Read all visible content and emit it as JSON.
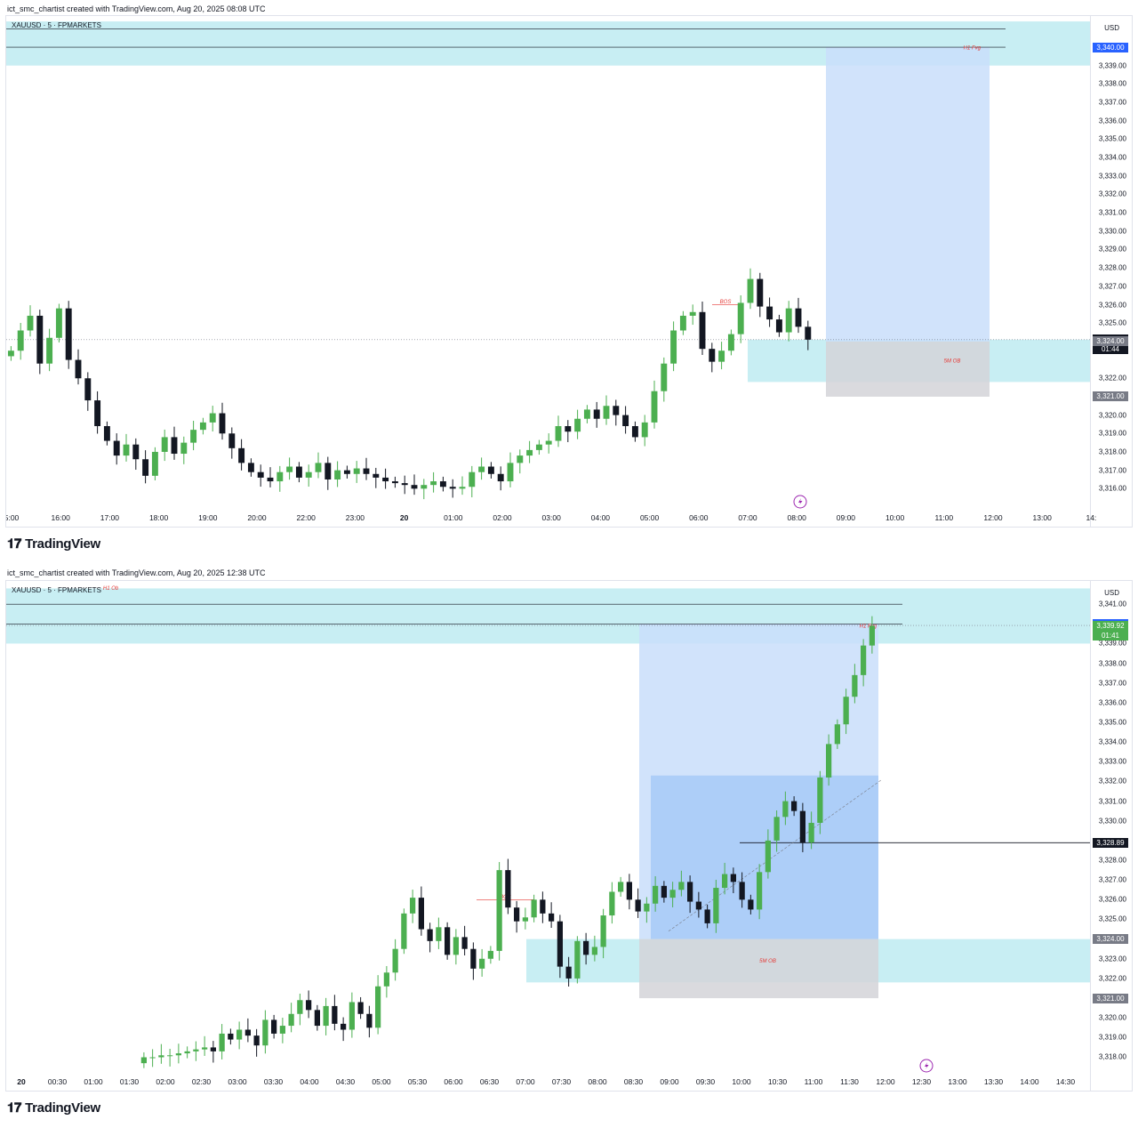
{
  "brand": "TradingView",
  "charts": [
    {
      "credit": "ict_smc_chartist created with TradingView.com, Aug 20, 2025 08:08 UTC",
      "symbol": "XAUUSD · 5 · FPMARKETS",
      "currency": "USD",
      "price_ticks": [
        "3,339.00",
        "3,338.00",
        "3,337.00",
        "3,336.00",
        "3,335.00",
        "3,334.00",
        "3,333.00",
        "3,332.00",
        "3,331.00",
        "3,330.00",
        "3,329.00",
        "3,328.00",
        "3,327.00",
        "3,326.00",
        "3,325.00",
        "3,322.00",
        "3,320.00",
        "3,319.00",
        "3,318.00",
        "3,317.00",
        "3,316.00"
      ],
      "time_ticks": [
        "5:00",
        "16:00",
        "17:00",
        "18:00",
        "19:00",
        "20:00",
        "22:00",
        "23:00",
        "20",
        "01:00",
        "02:00",
        "03:00",
        "04:00",
        "05:00",
        "06:00",
        "07:00",
        "08:00",
        "09:00",
        "10:00",
        "11:00",
        "12:00",
        "13:00",
        "14:"
      ],
      "price_tags": {
        "target": "3,340.00",
        "current_price": "3,324.10",
        "countdown": "01:44",
        "entry": "3,324.00",
        "stop": "3,321.00"
      },
      "labels": {
        "fvg": "H1 Fvg",
        "ob": "5M OB",
        "bos": "BOS"
      },
      "colors": {
        "fvg_zone": "#c8eef3",
        "target_zone": "#c9defa",
        "stop_zone": "#d4d4d8",
        "up": "#4caf50",
        "down": "#131722",
        "current": "#131722",
        "target_tag": "#2962ff"
      },
      "chart_data": {
        "type": "candlestick",
        "title": "XAUUSD · 5 · FPMARKETS",
        "ylim": [
          3315.0,
          3341.5
        ],
        "zones": [
          {
            "name": "H1 Fvg",
            "low": 3339.0,
            "high": 3341.4,
            "color": "#c8eef3"
          },
          {
            "name": "5M OB",
            "low": 3321.8,
            "high": 3324.1,
            "color": "#c8eef3"
          }
        ],
        "position": {
          "entry": 3324.0,
          "stop": 3321.0,
          "target": 3340.0
        },
        "levels": [
          3341.0,
          3340.0
        ],
        "current_price": 3324.1,
        "bos_level": 3326.0,
        "closes": [
          3323.5,
          3324.6,
          3325.4,
          3322.8,
          3324.2,
          3325.8,
          3323.0,
          3322.0,
          3320.8,
          3319.4,
          3318.6,
          3317.8,
          3318.4,
          3317.6,
          3316.7,
          3318.0,
          3318.8,
          3317.9,
          3318.5,
          3319.2,
          3319.6,
          3320.1,
          3319.0,
          3318.2,
          3317.4,
          3316.9,
          3316.6,
          3316.4,
          3316.9,
          3317.2,
          3316.6,
          3316.9,
          3317.4,
          3316.5,
          3317.0,
          3316.8,
          3317.1,
          3316.8,
          3316.6,
          3316.4,
          3316.3,
          3316.2,
          3316.0,
          3316.2,
          3316.4,
          3316.1,
          3316.0,
          3316.1,
          3316.9,
          3317.2,
          3316.8,
          3316.4,
          3317.4,
          3317.8,
          3318.1,
          3318.4,
          3318.6,
          3319.4,
          3319.1,
          3319.8,
          3320.3,
          3319.8,
          3320.5,
          3320.0,
          3319.4,
          3318.8,
          3319.6,
          3321.3,
          3322.8,
          3324.6,
          3325.4,
          3325.6,
          3323.6,
          3322.9,
          3323.5,
          3324.4,
          3326.1,
          3327.4,
          3325.9,
          3325.2,
          3324.5,
          3325.8,
          3324.8,
          3324.1
        ]
      }
    },
    {
      "credit": "ict_smc_chartist created with TradingView.com, Aug 20, 2025 12:38 UTC",
      "symbol": "XAUUSD · 5 · FPMARKETS",
      "symbol_suffix": "H1 Ob",
      "currency": "USD",
      "price_ticks": [
        "3,341.00",
        "3,339.00",
        "3,338.00",
        "3,337.00",
        "3,336.00",
        "3,335.00",
        "3,334.00",
        "3,333.00",
        "3,332.00",
        "3,331.00",
        "3,330.00",
        "3,328.00",
        "3,327.00",
        "3,326.00",
        "3,325.00",
        "3,323.00",
        "3,322.00",
        "3,320.00",
        "3,319.00",
        "3,318.00"
      ],
      "time_ticks": [
        "20",
        "00:30",
        "01:00",
        "01:30",
        "02:00",
        "02:30",
        "03:00",
        "03:30",
        "04:00",
        "04:30",
        "05:00",
        "05:30",
        "06:00",
        "06:30",
        "07:00",
        "07:30",
        "08:00",
        "08:30",
        "09:00",
        "09:30",
        "10:00",
        "10:30",
        "11:00",
        "11:30",
        "12:00",
        "12:30",
        "13:00",
        "13:30",
        "14:00",
        "14:30"
      ],
      "price_tags": {
        "target": "3,340.00",
        "current_price": "3,339.92",
        "countdown": "01:41",
        "level": "3,328.89",
        "entry": "3,324.00",
        "stop": "3,321.00"
      },
      "labels": {
        "fvg": "H1 Fvg",
        "ob": "5M OB",
        "bos": "BOS"
      },
      "colors": {
        "fvg_zone": "#c8eef3",
        "target_zone": "#c9defa",
        "profit_zone": "#a9cbf7",
        "stop_zone": "#d4d4d8",
        "up": "#4caf50",
        "down": "#131722",
        "current": "#4caf50",
        "target_tag": "#2962ff"
      },
      "chart_data": {
        "type": "candlestick",
        "title": "XAUUSD · 5 · FPMARKETS",
        "ylim": [
          3317.3,
          3342.0
        ],
        "zones": [
          {
            "name": "H1 Fvg",
            "low": 3339.0,
            "high": 3341.8,
            "color": "#c8eef3"
          },
          {
            "name": "5M OB",
            "low": 3321.8,
            "high": 3324.0,
            "color": "#c8eef3"
          }
        ],
        "position": {
          "entry": 3324.0,
          "stop": 3321.0,
          "target": 3340.0
        },
        "levels": [
          3341.0,
          3340.0,
          3328.89
        ],
        "current_price": 3339.92,
        "bos_level": 3326.0,
        "closes": [
          3318.0,
          3318.0,
          3318.1,
          3318.1,
          3318.2,
          3318.3,
          3318.4,
          3318.5,
          3318.3,
          3319.2,
          3318.9,
          3319.4,
          3319.1,
          3318.6,
          3319.9,
          3319.2,
          3319.6,
          3320.2,
          3320.9,
          3320.4,
          3319.6,
          3320.6,
          3319.7,
          3319.4,
          3320.8,
          3320.2,
          3319.5,
          3321.6,
          3322.3,
          3323.5,
          3325.3,
          3326.1,
          3324.5,
          3323.9,
          3324.6,
          3323.2,
          3324.1,
          3323.5,
          3322.5,
          3323.0,
          3323.4,
          3327.5,
          3325.6,
          3324.9,
          3325.1,
          3326.0,
          3325.3,
          3324.9,
          3322.6,
          3322.0,
          3323.9,
          3323.2,
          3323.6,
          3325.2,
          3326.4,
          3326.9,
          3326.0,
          3325.4,
          3325.8,
          3326.7,
          3326.1,
          3326.5,
          3326.9,
          3325.9,
          3325.5,
          3324.8,
          3326.6,
          3327.3,
          3326.9,
          3326.0,
          3325.5,
          3327.4,
          3329.0,
          3330.2,
          3331.0,
          3330.5,
          3328.9,
          3329.9,
          3332.2,
          3333.9,
          3334.9,
          3336.3,
          3337.4,
          3338.9,
          3339.9
        ]
      }
    }
  ]
}
